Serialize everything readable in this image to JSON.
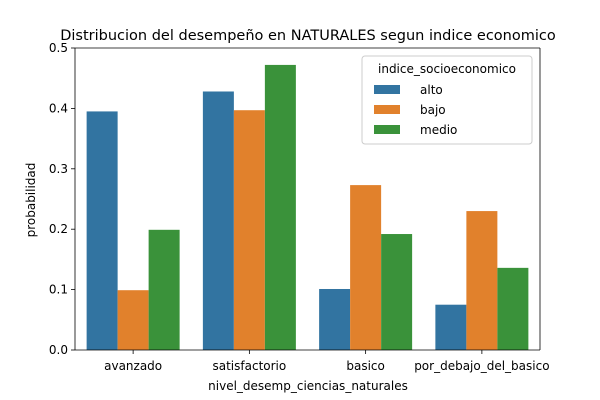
{
  "chart_data": {
    "type": "bar",
    "title": "Distribucion del desempeño en NATURALES segun indice economico",
    "xlabel": "nivel_desemp_ciencias_naturales",
    "ylabel": "probabilidad",
    "ylim": [
      0,
      0.5
    ],
    "yticks": [
      "0.0",
      "0.1",
      "0.2",
      "0.3",
      "0.4",
      "0.5"
    ],
    "categories": [
      "avanzado",
      "satisfactorio",
      "basico",
      "por_debajo_del_basico"
    ],
    "legend": {
      "title": "indice_socioeconomico",
      "placement": "top-right"
    },
    "series": [
      {
        "name": "alto",
        "color": "#3274a1",
        "values": [
          0.395,
          0.428,
          0.101,
          0.075
        ]
      },
      {
        "name": "bajo",
        "color": "#e1812c",
        "values": [
          0.099,
          0.397,
          0.273,
          0.23
        ]
      },
      {
        "name": "medio",
        "color": "#3a923a",
        "values": [
          0.199,
          0.472,
          0.192,
          0.136
        ]
      }
    ],
    "grid": false
  }
}
